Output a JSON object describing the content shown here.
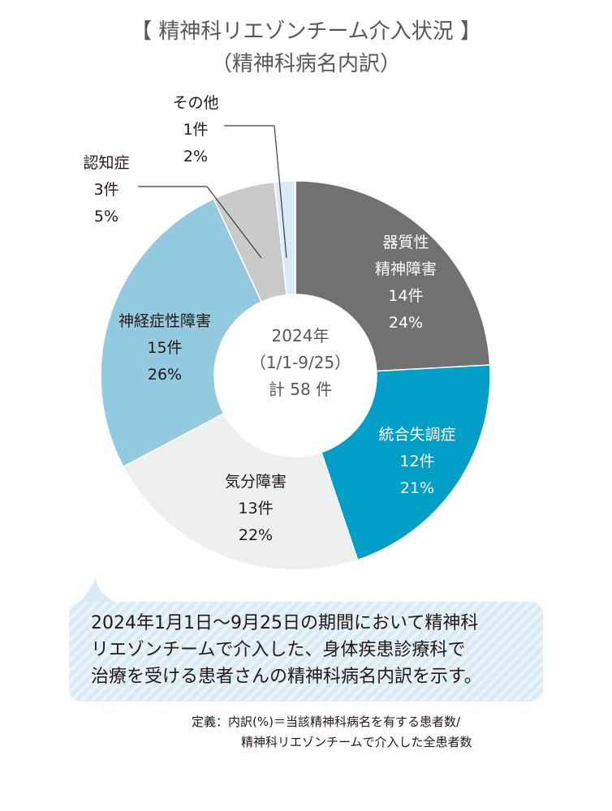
{
  "title": "【 精神科リエゾンチーム介入状況 】",
  "subtitle": "（精神科病名内訳）",
  "center": {
    "line1": "2024年",
    "line2": "（1/1-9/25）",
    "line3": "計 58 件"
  },
  "chart_data": {
    "type": "pie",
    "title": "【 精神科リエゾンチーム介入状況 】",
    "subtitle": "（精神科病名内訳）",
    "total_label": "計 58 件",
    "slices": [
      {
        "label": "器質性\n精神障害",
        "count_label": "14件",
        "percent_label": "24%",
        "value": 14,
        "color": "#727171",
        "text_color": "#ffffff"
      },
      {
        "label": "統合失調症",
        "count_label": "12件",
        "percent_label": "21%",
        "value": 12,
        "color": "#009fc8",
        "text_color": "#ffffff"
      },
      {
        "label": "気分障害",
        "count_label": "13件",
        "percent_label": "22%",
        "value": 13,
        "color": "#eeefef",
        "text_color": "#231815"
      },
      {
        "label": "神経症性障害",
        "count_label": "15件",
        "percent_label": "26%",
        "value": 15,
        "color": "#93cae0",
        "text_color": "#231815"
      },
      {
        "label": "認知症",
        "count_label": "3件",
        "percent_label": "5%",
        "value": 3,
        "color": "#c9caca",
        "text_color": "#231815"
      },
      {
        "label": "その他",
        "count_label": "1件",
        "percent_label": "2%",
        "value": 1,
        "color": "#d9ecf6",
        "text_color": "#231815"
      }
    ]
  },
  "note": {
    "line1": "2024年1月1日〜9月25日の期間において精神科",
    "line2": "リエゾンチームで介入した、身体疾患診療科で",
    "line3": "治療を受ける患者さんの精神科病名内訳を示す。"
  },
  "definition": {
    "line1": "定義：内訳(%)＝当該精神科病名を有する患者数/",
    "line2": "精神科リエゾンチームで介入した全患者数"
  }
}
